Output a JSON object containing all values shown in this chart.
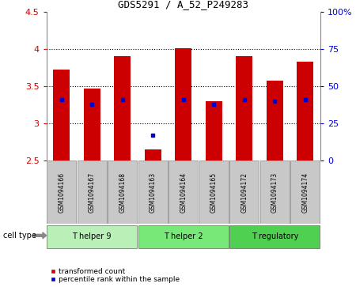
{
  "title": "GDS5291 / A_52_P249283",
  "samples": [
    "GSM1094166",
    "GSM1094167",
    "GSM1094168",
    "GSM1094163",
    "GSM1094164",
    "GSM1094165",
    "GSM1094172",
    "GSM1094173",
    "GSM1094174"
  ],
  "transformed_counts": [
    3.72,
    3.47,
    3.9,
    2.65,
    4.01,
    3.3,
    3.9,
    3.57,
    3.83
  ],
  "percentile_ranks": [
    41.0,
    38.0,
    41.0,
    17.0,
    41.0,
    38.0,
    41.0,
    40.0,
    41.0
  ],
  "ylim_left": [
    2.5,
    4.5
  ],
  "ylim_right": [
    0,
    100
  ],
  "right_ticks": [
    0,
    25,
    50,
    75,
    100
  ],
  "right_tick_labels": [
    "0",
    "25",
    "50",
    "75",
    "100%"
  ],
  "left_ticks": [
    2.5,
    3.0,
    3.5,
    4.0,
    4.5
  ],
  "left_tick_labels": [
    "2.5",
    "3",
    "3.5",
    "4",
    "4.5"
  ],
  "cell_groups": [
    {
      "label": "T helper 9",
      "indices": [
        0,
        1,
        2
      ],
      "color": "#b8f0b8"
    },
    {
      "label": "T helper 2",
      "indices": [
        3,
        4,
        5
      ],
      "color": "#78e878"
    },
    {
      "label": "T regulatory",
      "indices": [
        6,
        7,
        8
      ],
      "color": "#50d050"
    }
  ],
  "bar_color": "#cc0000",
  "dot_color": "#0000cc",
  "background_color": "#ffffff",
  "tick_color_left": "#cc0000",
  "tick_color_right": "#0000cc",
  "dotted_grid_values": [
    3.0,
    3.5,
    4.0
  ],
  "legend_items": [
    {
      "color": "#cc0000",
      "label": "transformed count"
    },
    {
      "color": "#0000cc",
      "label": "percentile rank within the sample"
    }
  ],
  "bar_width": 0.55,
  "sample_box_color": "#c8c8c8",
  "cell_type_label": "cell type"
}
